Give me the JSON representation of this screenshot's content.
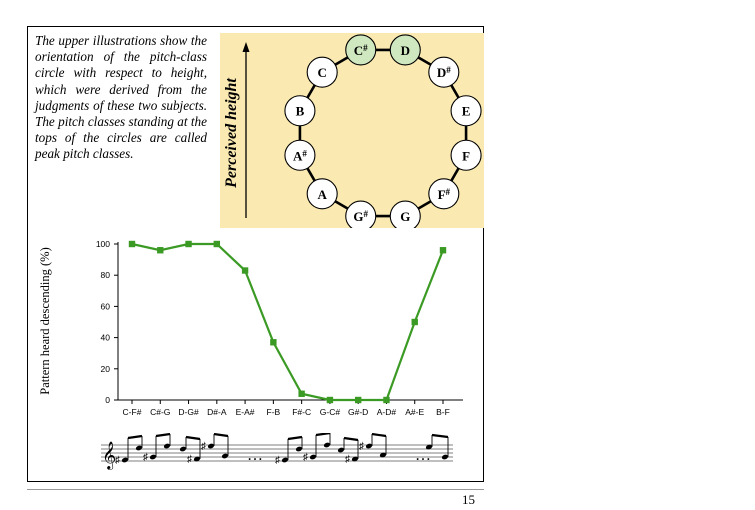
{
  "caption": "The upper illustrations show the orientation of the pitch-class circle with respect to height, which were derived from the judgments of these two subjects. The pitch classes standing at the tops of the circles are called peak pitch classes.",
  "pitch_circle": {
    "axis_label": "Perceived height",
    "background_color": "#faeab2",
    "peak_color": "#cfe8c0",
    "nodes": [
      {
        "base": "C",
        "accidental": "#",
        "peak": true
      },
      {
        "base": "D",
        "accidental": "",
        "peak": true
      },
      {
        "base": "D",
        "accidental": "#",
        "peak": false
      },
      {
        "base": "E",
        "accidental": "",
        "peak": false
      },
      {
        "base": "F",
        "accidental": "",
        "peak": false
      },
      {
        "base": "F",
        "accidental": "#",
        "peak": false
      },
      {
        "base": "G",
        "accidental": "",
        "peak": false
      },
      {
        "base": "G",
        "accidental": "#",
        "peak": false
      },
      {
        "base": "A",
        "accidental": "",
        "peak": false
      },
      {
        "base": "A",
        "accidental": "#",
        "peak": false
      },
      {
        "base": "B",
        "accidental": "",
        "peak": false
      },
      {
        "base": "C",
        "accidental": "",
        "peak": false
      }
    ]
  },
  "chart_data": {
    "type": "line",
    "title": "",
    "xlabel": "",
    "ylabel": "Pattern heard descending (%)",
    "categories": [
      "C-F#",
      "C#-G",
      "D-G#",
      "D#-A",
      "E-A#",
      "F-B",
      "F#-C",
      "G-C#",
      "G#-D",
      "A-D#",
      "A#-E",
      "B-F"
    ],
    "series": [
      {
        "values": [
          100,
          96,
          100,
          100,
          83,
          37,
          4,
          0,
          0,
          0,
          50,
          96
        ],
        "color": "#3b9a24"
      }
    ],
    "ylim": [
      0,
      100
    ],
    "yticks": [
      0,
      20,
      40,
      60,
      80,
      100
    ],
    "grid": false
  },
  "page_number": "15"
}
